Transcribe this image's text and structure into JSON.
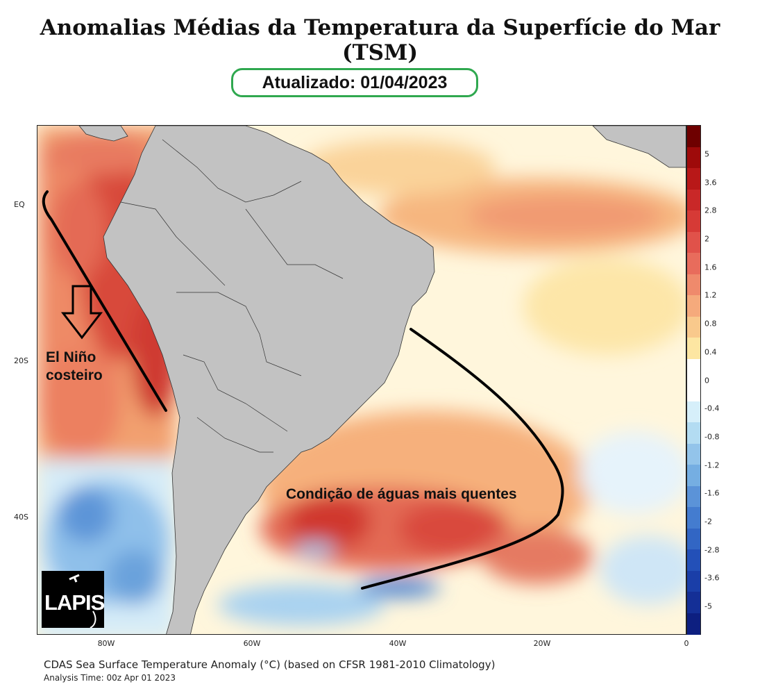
{
  "header": {
    "title": "Anomalias Médias da Temperatura da Superfície do Mar (TSM)",
    "updated_label": "Atualizado: 01/04/2023"
  },
  "map": {
    "lat_labels": [
      "EQ",
      "20S",
      "40S"
    ],
    "lon_labels": [
      "80W",
      "60W",
      "40W",
      "20W",
      "0"
    ],
    "annotations": {
      "el_nino_line1": "El Niño",
      "el_nino_line2": "costeiro",
      "warm_waters": "Condição de águas mais quentes"
    },
    "logo_text": "LAPIS"
  },
  "colorbar": {
    "labels": [
      "5",
      "3.6",
      "2.8",
      "2",
      "1.6",
      "1.2",
      "0.8",
      "0.4",
      "0",
      "-0.4",
      "-0.8",
      "-1.2",
      "-1.6",
      "-2",
      "-2.8",
      "-3.6",
      "-5"
    ],
    "colors": [
      "#6e0000",
      "#9e0a0a",
      "#b81818",
      "#c92828",
      "#d63a36",
      "#e0524a",
      "#e86c5c",
      "#ef8a6c",
      "#f5aa7c",
      "#f9c98c",
      "#fde6a2",
      "#ffffff",
      "#ffffff",
      "#d6effa",
      "#b3dcf2",
      "#93c4ea",
      "#75aee2",
      "#5b93d8",
      "#447ccf",
      "#3266c4",
      "#2350b8",
      "#1a3ea8",
      "#142f96",
      "#0d1f80"
    ]
  },
  "footer": {
    "caption": "CDAS Sea Surface Temperature Anomaly (°C) (based on CFSR 1981-2010 Climatology)",
    "analysis_time": "Analysis Time: 00z Apr 01 2023"
  }
}
